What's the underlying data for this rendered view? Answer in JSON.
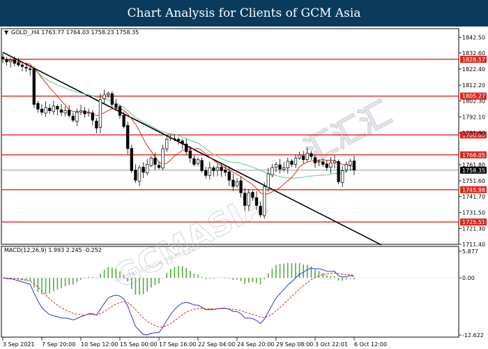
{
  "header": {
    "title": "Chart Analysis for Clients of GCM Asia"
  },
  "watermark": {
    "brand": "GCMASIA",
    "cn": "汇汇汇",
    "sub": "GLOBAL CAPITAL MARKETS"
  },
  "chart_data": {
    "type": "candlestick",
    "symbol_info": "GOLD_,H4  1763.77 1764.03 1758.23 1758.35",
    "current_price": 1758.35,
    "price_axis": {
      "ylim": [
        1711.4,
        1848.0
      ],
      "ticks": [
        "1842.50",
        "1832.60",
        "1822.40",
        "1812.20",
        "1802.30",
        "1792.10",
        "1781.90",
        "1761.80",
        "1751.60",
        "1741.70",
        "1731.50",
        "1721.30",
        "1711.40"
      ]
    },
    "resistance_support_levels": [
      "1828.57",
      "1805.27",
      "1780.65",
      "1768.05",
      "1745.98",
      "1725.51"
    ],
    "trendline": {
      "from": [
        0,
        1833.0
      ],
      "to": [
        97,
        1711.0
      ]
    },
    "x_ticks": [
      {
        "label": "3 Sep 2021",
        "i": 0
      },
      {
        "label": "7 Sep 20:00",
        "i": 10
      },
      {
        "label": "10 Sep 12:00",
        "i": 20
      },
      {
        "label": "15 Sep 00:00",
        "i": 30
      },
      {
        "label": "17 Sep 16:00",
        "i": 40
      },
      {
        "label": "22 Sep 04:00",
        "i": 50
      },
      {
        "label": "24 Sep 20:00",
        "i": 60
      },
      {
        "label": "29 Sep 08:00",
        "i": 70
      },
      {
        "label": "3 Oct 22:01",
        "i": 80
      },
      {
        "label": "6 Oct 12:00",
        "i": 90
      }
    ],
    "close": [
      1829,
      1827,
      1828,
      1826,
      1825,
      1824,
      1823,
      1822,
      1800,
      1797,
      1795,
      1798,
      1796,
      1799,
      1797,
      1795,
      1796,
      1793,
      1790,
      1795,
      1796,
      1794,
      1795,
      1790,
      1785,
      1803,
      1806,
      1807,
      1800,
      1798,
      1793,
      1786,
      1772,
      1758,
      1752,
      1760,
      1757,
      1762,
      1766,
      1762,
      1760,
      1772,
      1778,
      1779,
      1778,
      1777,
      1775,
      1770,
      1766,
      1762,
      1765,
      1758,
      1755,
      1760,
      1758,
      1760,
      1758,
      1757,
      1752,
      1748,
      1751,
      1744,
      1736,
      1744,
      1741,
      1736,
      1730,
      1748,
      1756,
      1760,
      1762,
      1759,
      1760,
      1764,
      1762,
      1766,
      1768,
      1765,
      1769,
      1767,
      1763,
      1764,
      1762,
      1760,
      1763,
      1764,
      1751,
      1758,
      1762,
      1764,
      1758.35
    ],
    "ma_red_end": 1752,
    "ma_green_end": 1751,
    "macd": {
      "label": "MACD(12,26,9) 1.993 2.245 -0.252",
      "ylim": [
        -12.622,
        5.877
      ],
      "ticks": [
        "5.877",
        "0.00",
        "-12.622"
      ]
    }
  }
}
